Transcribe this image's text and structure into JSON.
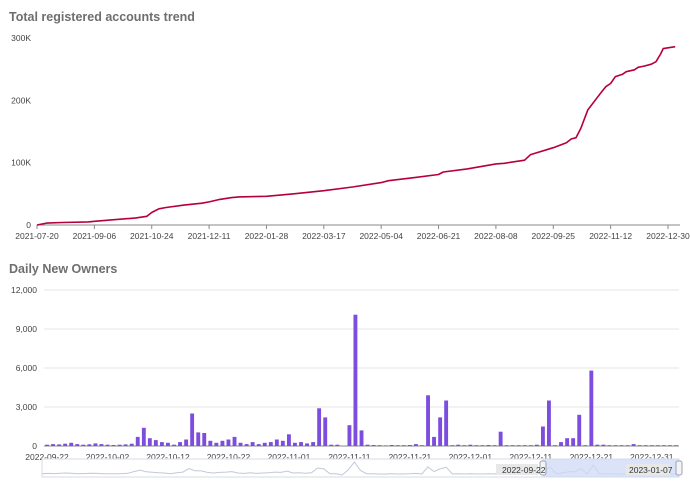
{
  "chart_data": [
    {
      "type": "line",
      "title": "Total registered accounts trend",
      "x_tick_labels": [
        "2021-07-20",
        "2021-09-06",
        "2021-10-24",
        "2021-12-11",
        "2022-01-28",
        "2022-03-17",
        "2022-05-04",
        "2022-06-21",
        "2022-08-08",
        "2022-09-25",
        "2022-11-12",
        "2022-12-30"
      ],
      "y_tick_labels": [
        "0",
        "100K",
        "200K",
        "300K"
      ],
      "ylim": [
        0,
        300000
      ],
      "grid": false,
      "color": "#b5003a",
      "series": [
        {
          "x": [
            "2021-07-20",
            "2021-07-28",
            "2021-08-10",
            "2021-09-01",
            "2021-09-06",
            "2021-09-25",
            "2021-10-10",
            "2021-10-20",
            "2021-10-24",
            "2021-10-30",
            "2021-11-05",
            "2021-11-20",
            "2021-12-05",
            "2021-12-11",
            "2021-12-20",
            "2021-12-30",
            "2022-01-05",
            "2022-01-28",
            "2022-02-20",
            "2022-03-17",
            "2022-04-10",
            "2022-05-04",
            "2022-05-10",
            "2022-06-01",
            "2022-06-21",
            "2022-06-25",
            "2022-07-15",
            "2022-08-08",
            "2022-08-15",
            "2022-09-01",
            "2022-09-06",
            "2022-09-25",
            "2022-10-06",
            "2022-10-10",
            "2022-10-14",
            "2022-10-18",
            "2022-10-24",
            "2022-10-28",
            "2022-11-01",
            "2022-11-05",
            "2022-11-08",
            "2022-11-12",
            "2022-11-16",
            "2022-11-22",
            "2022-11-25",
            "2022-12-02",
            "2022-12-05",
            "2022-12-10",
            "2022-12-16",
            "2022-12-20",
            "2022-12-24",
            "2022-12-26",
            "2023-01-05"
          ],
          "y": [
            0,
            3000,
            4000,
            5000,
            6000,
            9000,
            11000,
            14000,
            20000,
            26000,
            28000,
            32000,
            35000,
            37000,
            41000,
            44000,
            45000,
            46000,
            50000,
            55000,
            61000,
            68000,
            71000,
            76000,
            81000,
            85000,
            90000,
            98000,
            99000,
            104000,
            113000,
            124000,
            132000,
            138000,
            140000,
            155000,
            185000,
            195000,
            205000,
            215000,
            222000,
            227000,
            238000,
            242000,
            246000,
            249000,
            253000,
            255000,
            258000,
            262000,
            275000,
            283000,
            286000
          ]
        }
      ]
    },
    {
      "type": "bar",
      "title": "Daily New Owners",
      "x_tick_labels": [
        "2022-09-22",
        "2022-10-02",
        "2022-10-12",
        "2022-10-22",
        "2022-11-01",
        "2022-11-11",
        "2022-11-21",
        "2022-12-01",
        "2022-12-11",
        "2022-12-21",
        "2022-12-31"
      ],
      "y_tick_labels": [
        "0",
        "3,000",
        "6,000",
        "9,000",
        "12,000"
      ],
      "ylim": [
        0,
        12000
      ],
      "grid": true,
      "color": "#7c4ddf",
      "x_start": "2022-09-22",
      "series": [
        {
          "values": [
            100,
            150,
            120,
            180,
            250,
            150,
            100,
            130,
            200,
            150,
            100,
            80,
            100,
            120,
            180,
            700,
            1400,
            600,
            450,
            300,
            250,
            100,
            300,
            500,
            2500,
            1050,
            1000,
            400,
            250,
            400,
            500,
            700,
            250,
            150,
            300,
            150,
            250,
            300,
            500,
            400,
            900,
            250,
            300,
            200,
            300,
            2900,
            2200,
            100,
            100,
            0,
            1600,
            10100,
            1200,
            100,
            80,
            60,
            50,
            80,
            60,
            60,
            80,
            150,
            60,
            3900,
            700,
            2200,
            3500,
            60,
            100,
            60,
            100,
            60,
            60,
            80,
            60,
            1100,
            60,
            60,
            60,
            60,
            60,
            100,
            1500,
            3500,
            60,
            300,
            600,
            600,
            2400,
            60,
            5800,
            100,
            100,
            60,
            60,
            60,
            60,
            150,
            60,
            60,
            60,
            60,
            60,
            60,
            60
          ]
        }
      ]
    }
  ],
  "zoom": {
    "start_label": "2022-09-22",
    "end_label": "2023-01-07"
  }
}
